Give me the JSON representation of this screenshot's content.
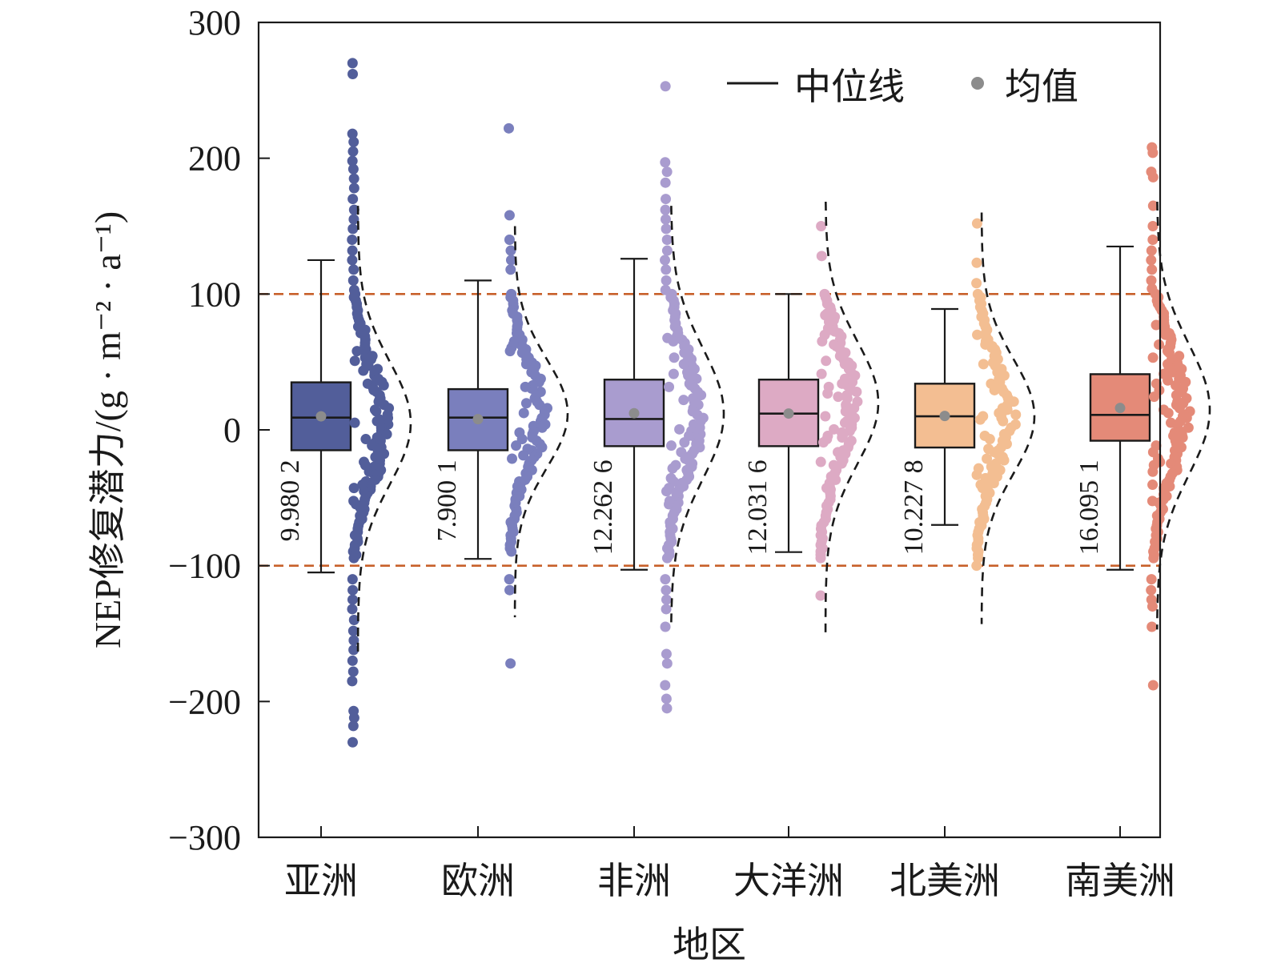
{
  "chart_data": {
    "type": "box",
    "xlabel": "地区",
    "ylabel": "NEP修复潜力/(g · m⁻² · a⁻¹)",
    "ylim": [
      -300,
      300
    ],
    "yticks": [
      "300",
      "200",
      "100",
      "0",
      "−100",
      "−200",
      "−300"
    ],
    "ytick_values": [
      300,
      200,
      100,
      0,
      -100,
      -200,
      -300
    ],
    "reference_lines": [
      100,
      -100
    ],
    "reference_line_color": "#c8602a",
    "legend": {
      "median": "中位线",
      "mean": "均值",
      "placement": "top-right"
    },
    "mean_marker_color": "#8c8c8c",
    "categories": [
      "亚洲",
      "欧洲",
      "非洲",
      "大洋洲",
      "北美洲",
      "南美洲"
    ],
    "series": [
      {
        "name": "亚洲",
        "color": "#525e9a",
        "mean_label": "9.980 2",
        "mean": 9.98,
        "median": 9,
        "q1": -15,
        "q3": 35,
        "whisker_low": -105,
        "whisker_high": 125,
        "density_peak": 5,
        "density_sd": 45,
        "curve_range": [
          -165,
          165
        ],
        "points_range": [
          -95,
          100
        ],
        "outliers": [
          270,
          262,
          218,
          212,
          205,
          198,
          192,
          185,
          178,
          170,
          162,
          155,
          148,
          140,
          132,
          125,
          118,
          110,
          103,
          -110,
          -118,
          -125,
          -132,
          -140,
          -148,
          -155,
          -162,
          -170,
          -178,
          -185,
          -207,
          -212,
          -218,
          -230
        ]
      },
      {
        "name": "欧洲",
        "color": "#7a7fbd",
        "mean_label": "7.900 1",
        "mean": 7.9,
        "median": 9,
        "q1": -15,
        "q3": 30,
        "whisker_low": -95,
        "whisker_high": 110,
        "density_peak": 12,
        "density_sd": 40,
        "curve_range": [
          -140,
          150
        ],
        "points_range": [
          -90,
          100
        ],
        "outliers": [
          222,
          158,
          140,
          132,
          125,
          118,
          -110,
          -118,
          -172
        ]
      },
      {
        "name": "非洲",
        "color": "#a99ccf",
        "mean_label": "12.262 6",
        "mean": 12.26,
        "median": 8,
        "q1": -12,
        "q3": 37,
        "whisker_low": -103,
        "whisker_high": 126,
        "density_peak": 12,
        "density_sd": 48,
        "curve_range": [
          -145,
          165
        ],
        "points_range": [
          -95,
          100
        ],
        "outliers": [
          253,
          197,
          190,
          182,
          170,
          162,
          155,
          148,
          140,
          132,
          125,
          118,
          110,
          103,
          -110,
          -118,
          -125,
          -132,
          -145,
          -165,
          -172,
          -188,
          -198,
          -205
        ]
      },
      {
        "name": "大洋洲",
        "color": "#ddaac4",
        "mean_label": "12.031 6",
        "mean": 12.03,
        "median": 12,
        "q1": -12,
        "q3": 37,
        "whisker_low": -90,
        "whisker_high": 100,
        "density_peak": 20,
        "density_sd": 45,
        "curve_range": [
          -152,
          168
        ],
        "points_range": [
          -95,
          100
        ],
        "outliers": [
          150,
          128,
          -122
        ]
      },
      {
        "name": "北美洲",
        "color": "#f3be92",
        "mean_label": "10.227 8",
        "mean": 10.23,
        "median": 10,
        "q1": -13,
        "q3": 34,
        "whisker_low": -70,
        "whisker_high": 89,
        "density_peak": 10,
        "density_sd": 42,
        "curve_range": [
          -143,
          160
        ],
        "points_range": [
          -95,
          100
        ],
        "outliers": [
          152,
          123,
          108,
          -100
        ]
      },
      {
        "name": "南美洲",
        "color": "#e48a78",
        "mean_label": "16.095 1",
        "mean": 16.1,
        "median": 11,
        "q1": -8,
        "q3": 41,
        "whisker_low": -103,
        "whisker_high": 135,
        "density_peak": 15,
        "density_sd": 48,
        "curve_range": [
          -148,
          168
        ],
        "points_range": [
          -95,
          100
        ],
        "outliers": [
          208,
          204,
          190,
          186,
          165,
          150,
          140,
          132,
          125,
          118,
          110,
          104,
          -110,
          -118,
          -125,
          -130,
          -145,
          -188
        ]
      }
    ]
  }
}
